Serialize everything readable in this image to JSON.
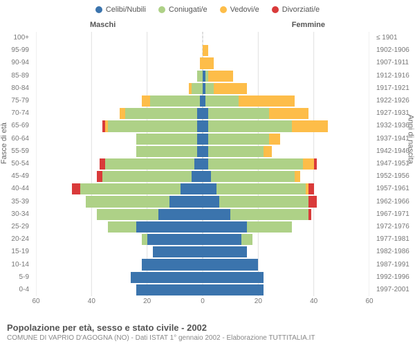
{
  "legend": [
    {
      "label": "Celibi/Nubili",
      "color": "#3b74ad"
    },
    {
      "label": "Coniugati/e",
      "color": "#aed187"
    },
    {
      "label": "Vedovi/e",
      "color": "#fdbd49"
    },
    {
      "label": "Divorziati/e",
      "color": "#d93a3a"
    }
  ],
  "header_male": "Maschi",
  "header_female": "Femmine",
  "axis_left_title": "Fasce di età",
  "axis_right_title": "Anni di nascita",
  "xmax": 60,
  "x_ticks": [
    60,
    40,
    20,
    0,
    20,
    40,
    60
  ],
  "footer_title": "Popolazione per età, sesso e stato civile - 2002",
  "footer_sub": "COMUNE DI VAPRIO D'AGOGNA (NO) - Dati ISTAT 1° gennaio 2002 - Elaborazione TUTTITALIA.IT",
  "colors": {
    "celibi": "#3b74ad",
    "coniugati": "#aed187",
    "vedovi": "#fdbd49",
    "divorziati": "#d93a3a",
    "grid": "#e0e0e0",
    "center": "#bbbbbb",
    "bg": "#ffffff"
  },
  "rows": [
    {
      "age": "100+",
      "birth": "≤ 1901",
      "m": [
        0,
        0,
        0,
        0
      ],
      "f": [
        0,
        0,
        0,
        0
      ]
    },
    {
      "age": "95-99",
      "birth": "1902-1906",
      "m": [
        0,
        0,
        0,
        0
      ],
      "f": [
        0,
        0,
        2,
        0
      ]
    },
    {
      "age": "90-94",
      "birth": "1907-1911",
      "m": [
        0,
        0,
        1,
        0
      ],
      "f": [
        0,
        0,
        4,
        0
      ]
    },
    {
      "age": "85-89",
      "birth": "1912-1916",
      "m": [
        0,
        2,
        0,
        0
      ],
      "f": [
        1,
        1,
        9,
        0
      ]
    },
    {
      "age": "80-84",
      "birth": "1917-1921",
      "m": [
        0,
        4,
        1,
        0
      ],
      "f": [
        1,
        3,
        12,
        0
      ]
    },
    {
      "age": "75-79",
      "birth": "1922-1926",
      "m": [
        1,
        18,
        3,
        0
      ],
      "f": [
        1,
        12,
        20,
        0
      ]
    },
    {
      "age": "70-74",
      "birth": "1927-1931",
      "m": [
        2,
        26,
        2,
        0
      ],
      "f": [
        2,
        22,
        14,
        0
      ]
    },
    {
      "age": "65-69",
      "birth": "1932-1936",
      "m": [
        2,
        32,
        1,
        1
      ],
      "f": [
        2,
        30,
        13,
        0
      ]
    },
    {
      "age": "60-64",
      "birth": "1937-1941",
      "m": [
        2,
        22,
        0,
        0
      ],
      "f": [
        2,
        22,
        4,
        0
      ]
    },
    {
      "age": "55-59",
      "birth": "1942-1946",
      "m": [
        2,
        22,
        0,
        0
      ],
      "f": [
        2,
        20,
        3,
        0
      ]
    },
    {
      "age": "50-54",
      "birth": "1947-1951",
      "m": [
        3,
        32,
        0,
        2
      ],
      "f": [
        2,
        34,
        4,
        1
      ]
    },
    {
      "age": "45-49",
      "birth": "1952-1956",
      "m": [
        4,
        32,
        0,
        2
      ],
      "f": [
        3,
        30,
        2,
        0
      ]
    },
    {
      "age": "40-44",
      "birth": "1957-1961",
      "m": [
        8,
        36,
        0,
        3
      ],
      "f": [
        5,
        32,
        1,
        2
      ]
    },
    {
      "age": "35-39",
      "birth": "1962-1966",
      "m": [
        12,
        30,
        0,
        0
      ],
      "f": [
        6,
        32,
        0,
        3
      ]
    },
    {
      "age": "30-34",
      "birth": "1967-1971",
      "m": [
        16,
        22,
        0,
        0
      ],
      "f": [
        10,
        28,
        0,
        1
      ]
    },
    {
      "age": "25-29",
      "birth": "1972-1976",
      "m": [
        24,
        10,
        0,
        0
      ],
      "f": [
        16,
        16,
        0,
        0
      ]
    },
    {
      "age": "20-24",
      "birth": "1977-1981",
      "m": [
        20,
        2,
        0,
        0
      ],
      "f": [
        14,
        4,
        0,
        0
      ]
    },
    {
      "age": "15-19",
      "birth": "1982-1986",
      "m": [
        18,
        0,
        0,
        0
      ],
      "f": [
        16,
        0,
        0,
        0
      ]
    },
    {
      "age": "10-14",
      "birth": "1987-1991",
      "m": [
        22,
        0,
        0,
        0
      ],
      "f": [
        20,
        0,
        0,
        0
      ]
    },
    {
      "age": "5-9",
      "birth": "1992-1996",
      "m": [
        26,
        0,
        0,
        0
      ],
      "f": [
        22,
        0,
        0,
        0
      ]
    },
    {
      "age": "0-4",
      "birth": "1997-2001",
      "m": [
        24,
        0,
        0,
        0
      ],
      "f": [
        22,
        0,
        0,
        0
      ]
    }
  ]
}
